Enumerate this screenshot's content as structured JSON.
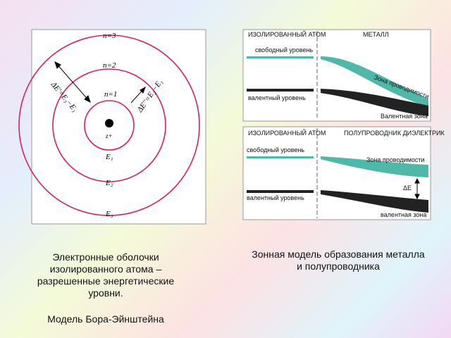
{
  "atom": {
    "n3": "n=3",
    "n2": "n=2",
    "n1": "n=1",
    "charge": "z+",
    "e1": "E₁",
    "e2": "E₂",
    "e3": "E₃",
    "delta_left": "ΔE'=E₃−E₁",
    "delta_right": "ΔE''=E₂−E₁"
  },
  "metal": {
    "atom_header": "ИЗОЛИРОВАННЫЙ АТОМ",
    "metal_header": "МЕТАЛЛ",
    "free_level": "свободный уровень",
    "valence_level": "валентный уровень",
    "conduction_band": "Зона проводимости",
    "valence_band": "Валентная зона"
  },
  "semiconductor": {
    "atom_header": "ИЗОЛИРОВАННЫЙ АТОМ",
    "semiconductor_header": "ПОЛУПРОВОДНИК ДИЭЛЕКТРИК",
    "free_level": "свободный уровень",
    "conduction_band": "Зона проводимости",
    "gap": "ΔE",
    "valence_level": "валентный уровень",
    "valence_band": "валентная зона"
  },
  "captions": {
    "left": "Электронные оболочки изолированного атома – разрешенные энергетические уровни.",
    "left_model": "Модель Бора-Эйнштейна",
    "right": "Зонная модель образования металла и полупроводника"
  }
}
